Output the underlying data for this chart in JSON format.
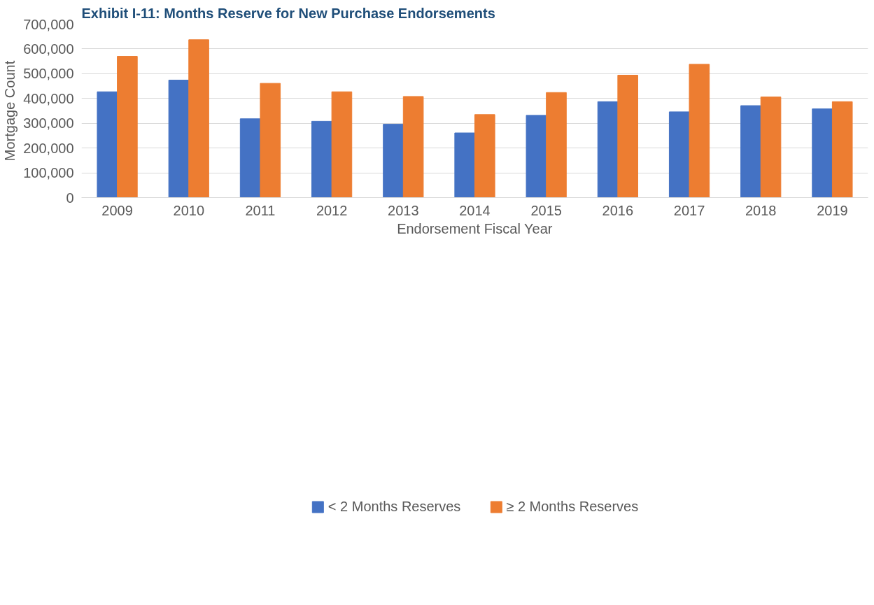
{
  "chart_data": {
    "type": "bar",
    "title": "Exhibit I-11: Months Reserve for New Purchase Endorsements",
    "xlabel": "Endorsement Fiscal Year",
    "ylabel": "Mortgage Count",
    "categories": [
      "2009",
      "2010",
      "2011",
      "2012",
      "2013",
      "2014",
      "2015",
      "2016",
      "2017",
      "2018",
      "2019"
    ],
    "series": [
      {
        "name": "< 2 Months Reserves",
        "color": "#4472c4",
        "values": [
          427000,
          474000,
          318000,
          308000,
          296000,
          261000,
          332000,
          387000,
          346000,
          371000,
          358000
        ]
      },
      {
        "name": "≥ 2 Months Reserves",
        "color": "#ed7d31",
        "values": [
          570000,
          637000,
          461000,
          427000,
          408000,
          335000,
          424000,
          494000,
          538000,
          406000,
          387000
        ]
      }
    ],
    "ylim": [
      0,
      700000
    ],
    "yticks": [
      {
        "value": 0,
        "label": "0"
      },
      {
        "value": 100000,
        "label": "100,000"
      },
      {
        "value": 200000,
        "label": "200,000"
      },
      {
        "value": 300000,
        "label": "300,000"
      },
      {
        "value": 400000,
        "label": "400,000"
      },
      {
        "value": 500000,
        "label": "500,000"
      },
      {
        "value": 600000,
        "label": "600,000"
      },
      {
        "value": 700000,
        "label": "700,000"
      }
    ],
    "grid": "y",
    "legend": "bottom"
  }
}
